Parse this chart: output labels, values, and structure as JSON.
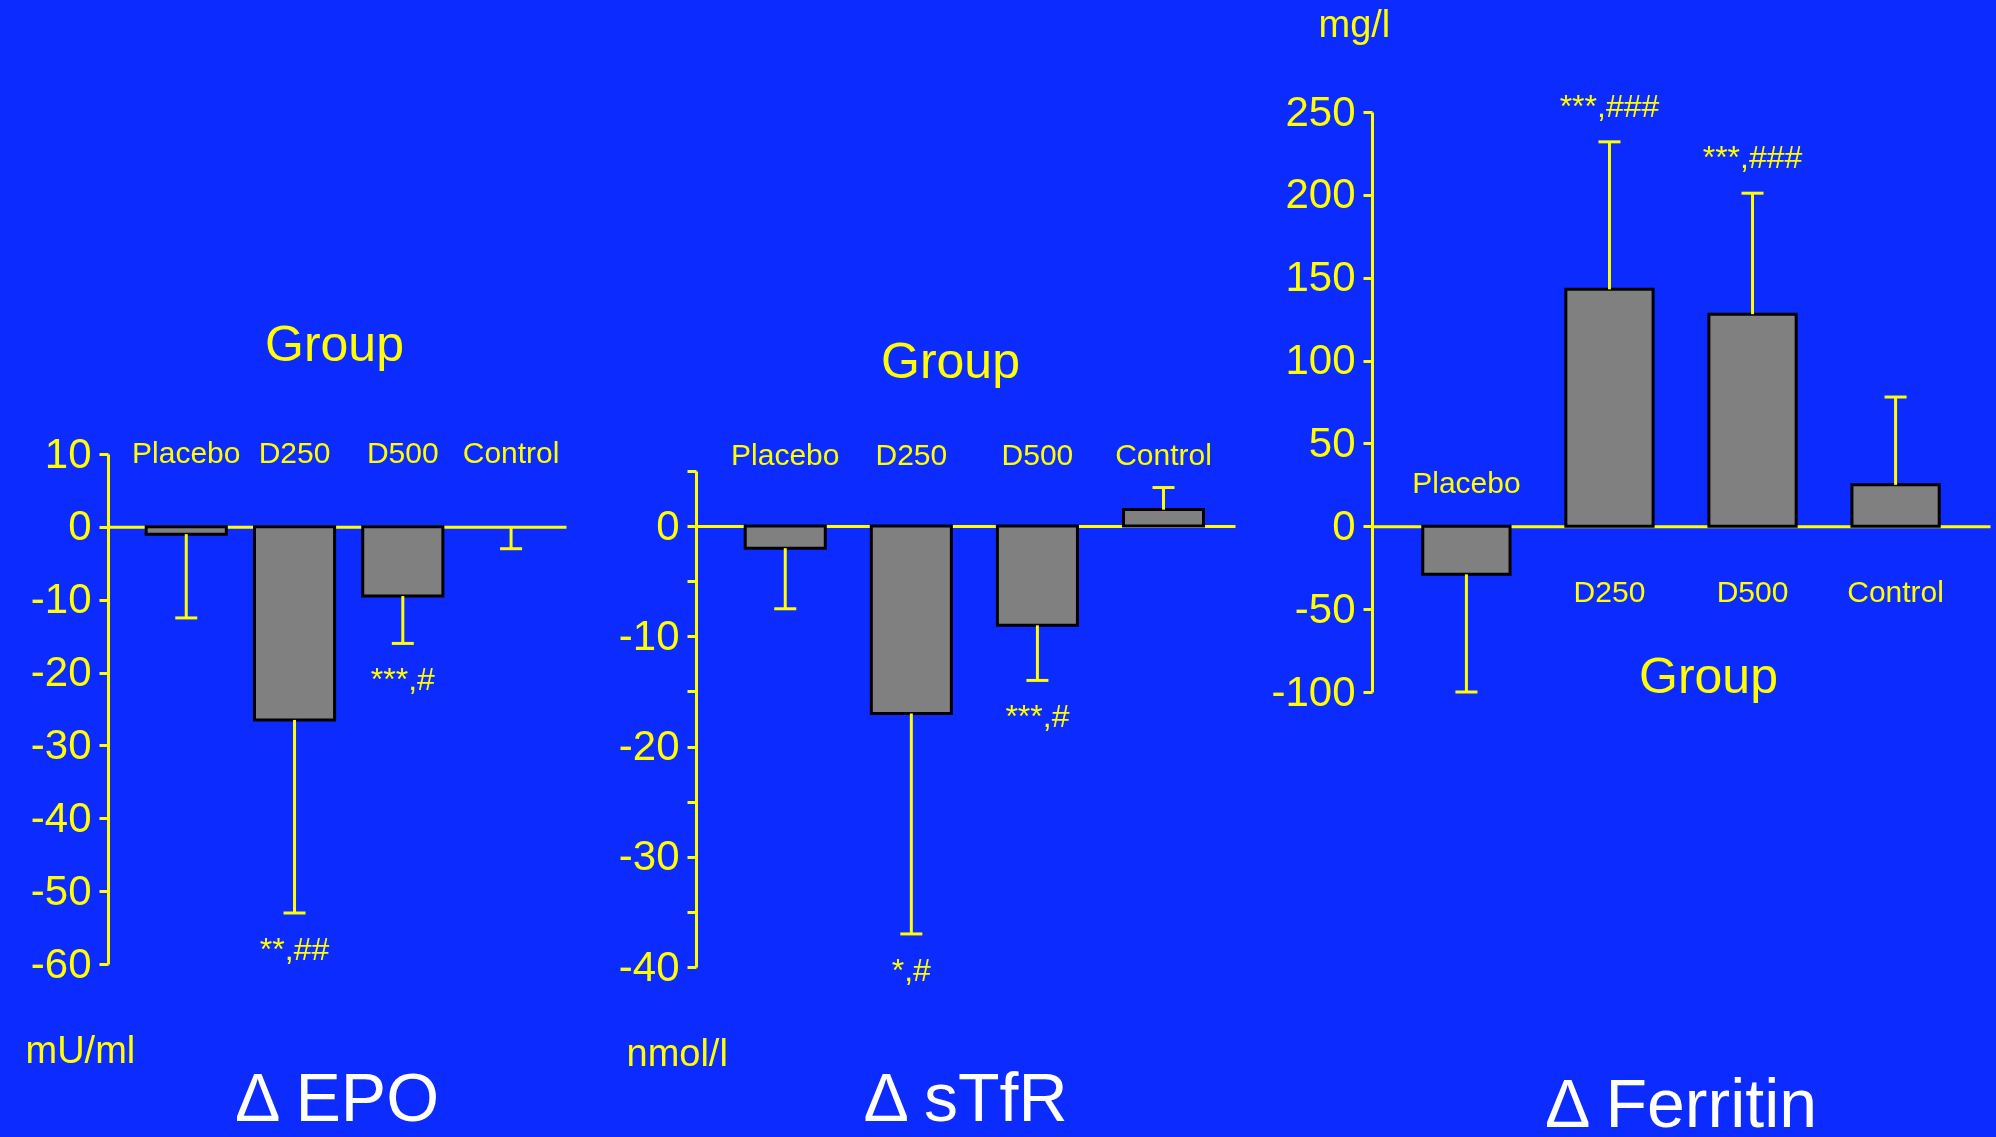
{
  "chart_data": [
    {
      "type": "bar",
      "title": "Δ EPO",
      "xlabel": "Group",
      "ylabel": "mU/ml",
      "categories": [
        "Placebo",
        "D250",
        "D500",
        "Control"
      ],
      "values": [
        -1,
        -26.5,
        -9.5,
        0
      ],
      "color": "#808080",
      "errors": [
        [
          -12.5,
          -1
        ],
        [
          -53,
          -26.5
        ],
        [
          -16,
          -9.5
        ],
        [
          -3,
          0
        ]
      ],
      "ylim": [
        -60,
        10
      ],
      "yticks": [
        10,
        0,
        -10,
        -20,
        -30,
        -40,
        -50,
        -60
      ],
      "annotations": [
        {
          "text": "**,##",
          "x": "D250",
          "y": -53
        },
        {
          "text": "***,#",
          "x": "D500",
          "y": -16
        }
      ]
    },
    {
      "type": "bar",
      "title": "Δ sTfR",
      "xlabel": "Group",
      "ylabel": "nmol/l",
      "categories": [
        "Placebo",
        "D250",
        "D500",
        "Control"
      ],
      "values": [
        -2,
        -17,
        -9,
        1.5
      ],
      "color": "#808080",
      "errors": [
        [
          -7.5,
          -2
        ],
        [
          -37,
          -17
        ],
        [
          -14,
          -9
        ],
        [
          1.5,
          3.5
        ]
      ],
      "ylim": [
        -40,
        5
      ],
      "yticks": [
        {
          "value": 5,
          "label": null
        },
        0,
        {
          "value": -5,
          "label": null
        },
        -10,
        {
          "value": -15,
          "label": null
        },
        -20,
        {
          "value": -25,
          "label": null
        },
        -30,
        {
          "value": -35,
          "label": null
        },
        -40
      ],
      "annotations": [
        {
          "text": "*,#",
          "x": "D250",
          "y": -37
        },
        {
          "text": "***,#",
          "x": "D500",
          "y": -14
        }
      ]
    },
    {
      "type": "bar",
      "title": "Δ Ferritin",
      "xlabel": "Group",
      "ylabel": "mg/l",
      "categories": [
        "Placebo",
        "D250",
        "D500",
        "Control"
      ],
      "values": [
        -29,
        143,
        128,
        25
      ],
      "color": "#808080",
      "errors": [
        [
          -100,
          -29
        ],
        [
          143,
          232
        ],
        [
          128,
          201
        ],
        [
          25,
          78
        ]
      ],
      "ylim": [
        -100,
        250
      ],
      "yticks": [
        250,
        200,
        150,
        100,
        50,
        0,
        -50,
        -100
      ],
      "annotations": [
        {
          "text": "***,###",
          "x": "D250",
          "y": 232
        },
        {
          "text": "***,###",
          "x": "D500",
          "y": 201
        }
      ]
    }
  ]
}
